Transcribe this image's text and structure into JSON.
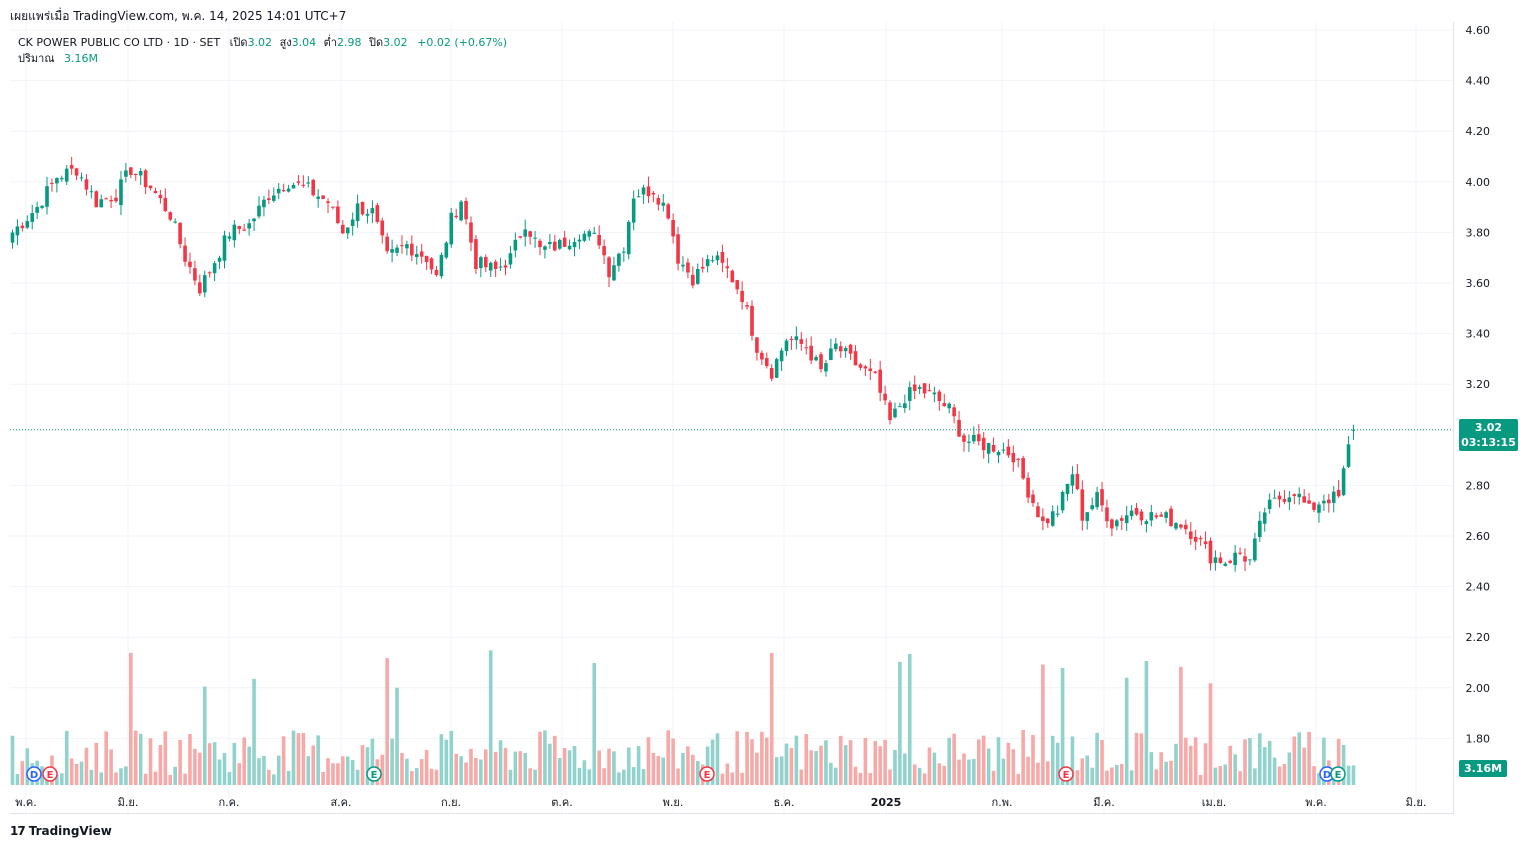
{
  "header": {
    "published": "เผยแพร่เมื่อ TradingView.com, พ.ค. 14, 2025 14:01 UTC+7"
  },
  "legend": {
    "title": "CK POWER PUBLIC CO LTD · 1D · SET",
    "open_label": "เปิด",
    "open": "3.02",
    "high_label": "สูง",
    "high": "3.04",
    "low_label": "ต่ำ",
    "low": "2.98",
    "close_label": "ปิด",
    "close": "3.02",
    "change": "+0.02 (+0.67%)",
    "volume_label": "ปริมาณ",
    "volume": "3.16M"
  },
  "price_tag": {
    "price": "3.02",
    "countdown": "03:13:15"
  },
  "volume_tag": "3.16M",
  "footer": {
    "brand": "TradingView",
    "logo": "17"
  },
  "colors": {
    "up": "#089981",
    "down": "#f23645",
    "up_vol": "#92d2cc",
    "down_vol": "#f7a9a7",
    "grid": "#f0f3fa"
  },
  "chart_data": {
    "type": "candlestick",
    "y_ticks": [
      "4.60",
      "4.40",
      "4.20",
      "4.00",
      "3.80",
      "3.60",
      "3.40",
      "3.20",
      "2.80",
      "2.60",
      "2.40",
      "2.20",
      "2.00",
      "1.80"
    ],
    "y_range": [
      1.72,
      4.6
    ],
    "x_ticks": [
      "พ.ค.",
      "มิ.ย.",
      "ก.ค.",
      "ส.ค.",
      "ก.ย.",
      "ต.ค.",
      "พ.ย.",
      "ธ.ค.",
      "2025",
      "ก.พ.",
      "มี.ค.",
      "เม.ย.",
      "พ.ค.",
      "มิ.ย."
    ],
    "last_price": 3.02,
    "anchors": [
      [
        0,
        3.8
      ],
      [
        5,
        3.9
      ],
      [
        9,
        4.02
      ],
      [
        13,
        4.05
      ],
      [
        17,
        3.92
      ],
      [
        21,
        3.95
      ],
      [
        24,
        4.05
      ],
      [
        28,
        3.98
      ],
      [
        32,
        3.87
      ],
      [
        35,
        3.7
      ],
      [
        38,
        3.58
      ],
      [
        40,
        3.65
      ],
      [
        44,
        3.8
      ],
      [
        48,
        3.83
      ],
      [
        52,
        3.95
      ],
      [
        56,
        4.0
      ],
      [
        60,
        3.97
      ],
      [
        64,
        3.92
      ],
      [
        67,
        3.8
      ],
      [
        70,
        3.9
      ],
      [
        73,
        3.88
      ],
      [
        76,
        3.7
      ],
      [
        80,
        3.75
      ],
      [
        84,
        3.7
      ],
      [
        86,
        3.62
      ],
      [
        89,
        3.85
      ],
      [
        91,
        3.93
      ],
      [
        94,
        3.68
      ],
      [
        98,
        3.65
      ],
      [
        101,
        3.7
      ],
      [
        104,
        3.84
      ],
      [
        107,
        3.73
      ],
      [
        111,
        3.75
      ],
      [
        115,
        3.8
      ],
      [
        119,
        3.77
      ],
      [
        121,
        3.65
      ],
      [
        124,
        3.75
      ],
      [
        126,
        3.95
      ],
      [
        130,
        3.97
      ],
      [
        133,
        3.88
      ],
      [
        135,
        3.7
      ],
      [
        138,
        3.62
      ],
      [
        142,
        3.7
      ],
      [
        145,
        3.65
      ],
      [
        148,
        3.55
      ],
      [
        151,
        3.35
      ],
      [
        154,
        3.25
      ],
      [
        157,
        3.38
      ],
      [
        161,
        3.35
      ],
      [
        164,
        3.25
      ],
      [
        167,
        3.35
      ],
      [
        171,
        3.28
      ],
      [
        175,
        3.22
      ],
      [
        178,
        3.05
      ],
      [
        181,
        3.15
      ],
      [
        184,
        3.18
      ],
      [
        187,
        3.15
      ],
      [
        190,
        3.1
      ],
      [
        193,
        2.98
      ],
      [
        197,
        2.96
      ],
      [
        200,
        2.95
      ],
      [
        203,
        2.92
      ],
      [
        206,
        2.78
      ],
      [
        209,
        2.65
      ],
      [
        212,
        2.7
      ],
      [
        215,
        2.85
      ],
      [
        217,
        2.68
      ],
      [
        220,
        2.75
      ],
      [
        223,
        2.65
      ],
      [
        227,
        2.7
      ],
      [
        231,
        2.68
      ],
      [
        234,
        2.67
      ],
      [
        237,
        2.65
      ],
      [
        240,
        2.6
      ],
      [
        243,
        2.52
      ],
      [
        246,
        2.5
      ],
      [
        249,
        2.53
      ],
      [
        251,
        2.5
      ],
      [
        254,
        2.7
      ],
      [
        257,
        2.75
      ],
      [
        260,
        2.78
      ],
      [
        263,
        2.7
      ],
      [
        266,
        2.75
      ],
      [
        269,
        2.75
      ],
      [
        271,
        2.95
      ],
      [
        272,
        3.02
      ]
    ]
  }
}
